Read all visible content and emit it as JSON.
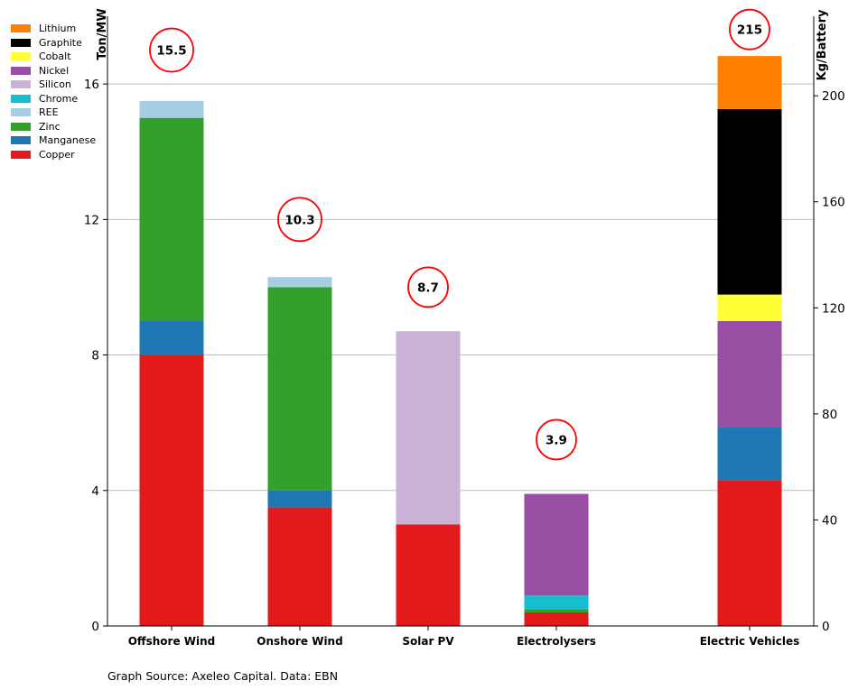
{
  "chart_data": {
    "type": "bar",
    "stacked": true,
    "categories": [
      "Offshore Wind",
      "Onshore Wind",
      "Solar PV",
      "Electrolysers",
      "Electric Vehicles"
    ],
    "left_axis": {
      "label": "Ton/MW",
      "ylim": [
        0,
        18
      ],
      "ticks": [
        "0",
        "4",
        "8",
        "12",
        "16"
      ]
    },
    "right_axis": {
      "label": "Kg/Battery",
      "ylim": [
        0,
        230
      ],
      "ticks": [
        "0",
        "40",
        "80",
        "120",
        "160",
        "200"
      ]
    },
    "grid": true,
    "legend_placement": "top-left",
    "series": [
      {
        "name": "Copper",
        "color": "#e31a1c",
        "values": [
          8.0,
          3.5,
          3.0,
          0.4,
          55
        ]
      },
      {
        "name": "Manganese",
        "color": "#1f78b4",
        "values": [
          1.0,
          0.5,
          0.0,
          0.0,
          20
        ]
      },
      {
        "name": "Zinc",
        "color": "#33a02c",
        "values": [
          6.0,
          6.0,
          0.0,
          0.1,
          0
        ]
      },
      {
        "name": "REE",
        "color": "#a6cee3",
        "values": [
          0.5,
          0.3,
          0.0,
          0.0,
          0
        ]
      },
      {
        "name": "Chrome",
        "color": "#17becf",
        "values": [
          0.0,
          0.0,
          0.0,
          0.4,
          0
        ]
      },
      {
        "name": "Silicon",
        "color": "#cab2d6",
        "values": [
          0.0,
          0.0,
          5.7,
          0.0,
          0
        ]
      },
      {
        "name": "Nickel",
        "color": "#984ea3",
        "values": [
          0.0,
          0.0,
          0.0,
          3.0,
          40
        ]
      },
      {
        "name": "Cobalt",
        "color": "#ffff33",
        "values": [
          0.0,
          0.0,
          0.0,
          0.0,
          10
        ]
      },
      {
        "name": "Graphite",
        "color": "#000000",
        "values": [
          0.0,
          0.0,
          0.0,
          0.0,
          70
        ]
      },
      {
        "name": "Lithium",
        "color": "#ff7f00",
        "values": [
          0.0,
          0.0,
          0.0,
          0.0,
          20
        ]
      }
    ],
    "legend_order": [
      "Lithium",
      "Graphite",
      "Cobalt",
      "Nickel",
      "Silicon",
      "Chrome",
      "REE",
      "Zinc",
      "Manganese",
      "Copper"
    ],
    "totals": [
      "15.5",
      "10.3",
      "8.7",
      "3.9",
      "215"
    ],
    "total_label_values": [
      17,
      12,
      10,
      5.5,
      225
    ],
    "axis_for_category": [
      "left",
      "left",
      "left",
      "left",
      "right"
    ]
  },
  "source_text": "Graph Source: Axeleo Capital. Data: EBN"
}
